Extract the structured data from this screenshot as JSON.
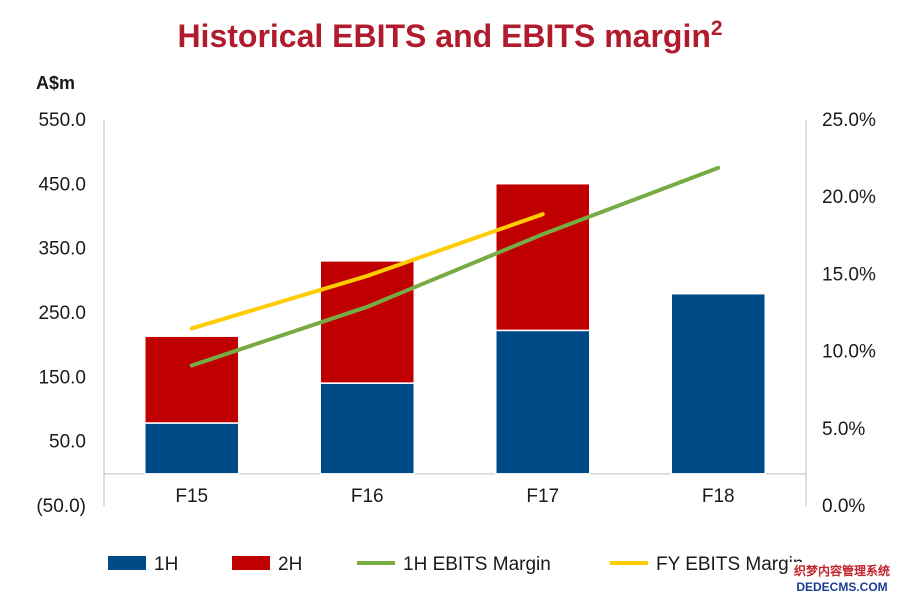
{
  "chart_data": {
    "type": "bar",
    "stacked": true,
    "title": "Historical EBITS and EBITS margin",
    "title_superscript": "2",
    "ylabel": "A$m",
    "categories": [
      "F15",
      "F16",
      "F17",
      "F18"
    ],
    "series": [
      {
        "name": "1H",
        "type": "bar",
        "axis": "left",
        "color": "#004a87",
        "values": [
          79,
          141,
          223,
          280
        ]
      },
      {
        "name": "2H",
        "type": "bar",
        "axis": "left",
        "color": "#c00000",
        "values": [
          135,
          190,
          228,
          null
        ]
      },
      {
        "name": "1H EBITS Margin",
        "type": "line",
        "axis": "right",
        "color": "#77ab43",
        "values": [
          9.1,
          12.9,
          17.6,
          21.9
        ]
      },
      {
        "name": "FY EBITS Margin",
        "type": "line",
        "axis": "right",
        "color": "#ffcc00",
        "values": [
          11.5,
          14.9,
          18.9,
          null
        ]
      }
    ],
    "ylim_left": [
      -50,
      550
    ],
    "yticks_left": [
      "(50.0)",
      "50.0",
      "150.0",
      "250.0",
      "350.0",
      "450.0",
      "550.0"
    ],
    "ylim_right": [
      0,
      25
    ],
    "yticks_right": [
      "0.0%",
      "5.0%",
      "10.0%",
      "15.0%",
      "20.0%",
      "25.0%"
    ],
    "legend_position": "bottom",
    "title_color": "#b01c2e",
    "grid": false
  },
  "watermark": {
    "line1": "织梦内容管理系统",
    "line2": "DEDECMS.COM"
  }
}
